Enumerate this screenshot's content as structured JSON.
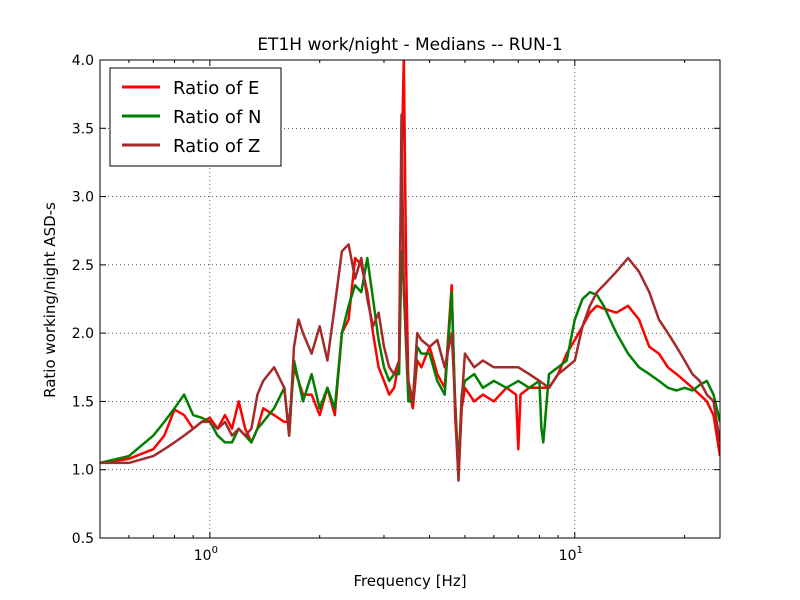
{
  "chart_data": {
    "type": "line",
    "title": "ET1H work/night - Medians -- RUN-1",
    "xlabel": "Frequency [Hz]",
    "ylabel": "Ratio working/night ASD-s",
    "xscale": "log",
    "xlim": [
      0.5,
      25
    ],
    "ylim": [
      0.5,
      4.0
    ],
    "yticks": [
      0.5,
      1.0,
      1.5,
      2.0,
      2.5,
      3.0,
      3.5,
      4.0
    ],
    "ytick_labels": [
      "0.5",
      "1.0",
      "1.5",
      "2.0",
      "2.5",
      "3.0",
      "3.5",
      "4.0"
    ],
    "xticks": [
      1,
      10
    ],
    "xtick_labels": [
      {
        "base": "10",
        "exp": "0"
      },
      {
        "base": "10",
        "exp": "1"
      }
    ],
    "grid": true,
    "legend_position": "top-left",
    "series": [
      {
        "name": "Ratio of E",
        "color": "#ff0000",
        "x": [
          0.5,
          0.6,
          0.7,
          0.75,
          0.8,
          0.85,
          0.9,
          0.95,
          1.0,
          1.05,
          1.1,
          1.15,
          1.2,
          1.25,
          1.3,
          1.35,
          1.4,
          1.5,
          1.6,
          1.65,
          1.7,
          1.8,
          1.9,
          2.0,
          2.1,
          2.2,
          2.3,
          2.4,
          2.5,
          2.6,
          2.7,
          2.8,
          2.9,
          3.0,
          3.1,
          3.2,
          3.3,
          3.35,
          3.4,
          3.45,
          3.5,
          3.6,
          3.7,
          3.8,
          4.0,
          4.2,
          4.4,
          4.6,
          4.7,
          4.8,
          4.9,
          5.0,
          5.3,
          5.6,
          6.0,
          6.5,
          6.9,
          7.0,
          7.1,
          7.5,
          8.0,
          8.5,
          9.0,
          9.5,
          10.0,
          10.5,
          11.0,
          11.5,
          12.0,
          13.0,
          14.0,
          15.0,
          16.0,
          17.0,
          18.0,
          19.0,
          20.0,
          21.0,
          22.0,
          23.0,
          24.0,
          25.0
        ],
        "values": [
          1.05,
          1.08,
          1.15,
          1.25,
          1.44,
          1.4,
          1.3,
          1.35,
          1.38,
          1.3,
          1.4,
          1.3,
          1.5,
          1.3,
          1.2,
          1.3,
          1.45,
          1.4,
          1.35,
          1.35,
          1.75,
          1.55,
          1.55,
          1.4,
          1.6,
          1.4,
          2.0,
          2.1,
          2.55,
          2.5,
          2.3,
          2.0,
          1.75,
          1.65,
          1.55,
          1.6,
          1.8,
          3.2,
          4.0,
          2.5,
          1.6,
          1.45,
          1.8,
          1.75,
          1.9,
          1.7,
          1.6,
          2.35,
          1.4,
          0.95,
          1.45,
          1.6,
          1.5,
          1.55,
          1.5,
          1.6,
          1.55,
          1.15,
          1.55,
          1.6,
          1.6,
          1.6,
          1.7,
          1.85,
          1.95,
          2.05,
          2.15,
          2.2,
          2.18,
          2.15,
          2.2,
          2.1,
          1.9,
          1.85,
          1.75,
          1.7,
          1.65,
          1.6,
          1.55,
          1.5,
          1.4,
          1.1
        ]
      },
      {
        "name": "Ratio of N",
        "color": "#008000",
        "x": [
          0.5,
          0.6,
          0.7,
          0.75,
          0.8,
          0.85,
          0.9,
          0.95,
          1.0,
          1.05,
          1.1,
          1.15,
          1.2,
          1.25,
          1.3,
          1.35,
          1.4,
          1.5,
          1.6,
          1.65,
          1.7,
          1.8,
          1.9,
          2.0,
          2.1,
          2.2,
          2.3,
          2.4,
          2.5,
          2.6,
          2.7,
          2.8,
          2.9,
          3.0,
          3.1,
          3.2,
          3.3,
          3.35,
          3.4,
          3.45,
          3.5,
          3.6,
          3.7,
          3.8,
          4.0,
          4.2,
          4.4,
          4.6,
          4.7,
          4.8,
          4.9,
          5.0,
          5.3,
          5.6,
          6.0,
          6.5,
          7.0,
          7.5,
          8.0,
          8.1,
          8.2,
          8.5,
          9.0,
          9.5,
          10.0,
          10.5,
          11.0,
          11.5,
          12.0,
          13.0,
          14.0,
          15.0,
          16.0,
          17.0,
          18.0,
          19.0,
          20.0,
          21.0,
          22.0,
          23.0,
          24.0,
          25.0
        ],
        "values": [
          1.05,
          1.1,
          1.25,
          1.35,
          1.45,
          1.55,
          1.4,
          1.38,
          1.35,
          1.25,
          1.2,
          1.2,
          1.3,
          1.25,
          1.2,
          1.3,
          1.35,
          1.45,
          1.6,
          1.25,
          1.8,
          1.5,
          1.7,
          1.45,
          1.6,
          1.45,
          2.0,
          2.2,
          2.35,
          2.3,
          2.55,
          2.25,
          1.95,
          1.75,
          1.65,
          1.7,
          1.7,
          2.6,
          2.35,
          1.9,
          1.5,
          1.5,
          1.9,
          1.85,
          1.85,
          1.65,
          1.55,
          2.3,
          1.5,
          1.0,
          1.55,
          1.65,
          1.7,
          1.6,
          1.65,
          1.6,
          1.65,
          1.6,
          1.65,
          1.3,
          1.2,
          1.7,
          1.75,
          1.8,
          2.1,
          2.25,
          2.3,
          2.28,
          2.2,
          2.0,
          1.85,
          1.75,
          1.7,
          1.65,
          1.6,
          1.58,
          1.6,
          1.58,
          1.62,
          1.65,
          1.55,
          1.35
        ]
      },
      {
        "name": "Ratio of Z",
        "color": "#a52a2a",
        "x": [
          0.5,
          0.6,
          0.7,
          0.75,
          0.8,
          0.85,
          0.9,
          0.95,
          1.0,
          1.05,
          1.1,
          1.15,
          1.2,
          1.25,
          1.3,
          1.35,
          1.4,
          1.5,
          1.6,
          1.65,
          1.7,
          1.75,
          1.8,
          1.9,
          2.0,
          2.1,
          2.2,
          2.3,
          2.4,
          2.5,
          2.6,
          2.7,
          2.8,
          2.9,
          3.0,
          3.1,
          3.2,
          3.3,
          3.35,
          3.4,
          3.45,
          3.5,
          3.6,
          3.7,
          3.8,
          4.0,
          4.2,
          4.4,
          4.6,
          4.7,
          4.8,
          4.9,
          5.0,
          5.3,
          5.6,
          6.0,
          6.5,
          7.0,
          7.5,
          8.0,
          8.5,
          9.0,
          9.5,
          10.0,
          10.5,
          11.0,
          11.5,
          12.0,
          13.0,
          14.0,
          15.0,
          16.0,
          17.0,
          18.0,
          19.0,
          20.0,
          21.0,
          22.0,
          23.0,
          24.0,
          25.0
        ],
        "values": [
          1.05,
          1.05,
          1.1,
          1.15,
          1.2,
          1.25,
          1.3,
          1.35,
          1.35,
          1.3,
          1.35,
          1.25,
          1.3,
          1.25,
          1.3,
          1.55,
          1.65,
          1.75,
          1.6,
          1.25,
          1.9,
          2.1,
          2.0,
          1.85,
          2.05,
          1.8,
          2.2,
          2.6,
          2.65,
          2.4,
          2.55,
          2.25,
          2.05,
          2.15,
          1.9,
          1.75,
          1.7,
          1.8,
          3.6,
          2.3,
          1.95,
          1.65,
          1.5,
          2.0,
          1.95,
          1.9,
          1.95,
          1.75,
          2.0,
          1.5,
          0.92,
          1.5,
          1.85,
          1.75,
          1.8,
          1.75,
          1.75,
          1.75,
          1.7,
          1.65,
          1.6,
          1.7,
          1.75,
          1.8,
          2.05,
          2.2,
          2.3,
          2.35,
          2.45,
          2.55,
          2.45,
          2.3,
          2.1,
          2.0,
          1.9,
          1.8,
          1.7,
          1.65,
          1.55,
          1.5,
          1.2
        ]
      }
    ]
  }
}
